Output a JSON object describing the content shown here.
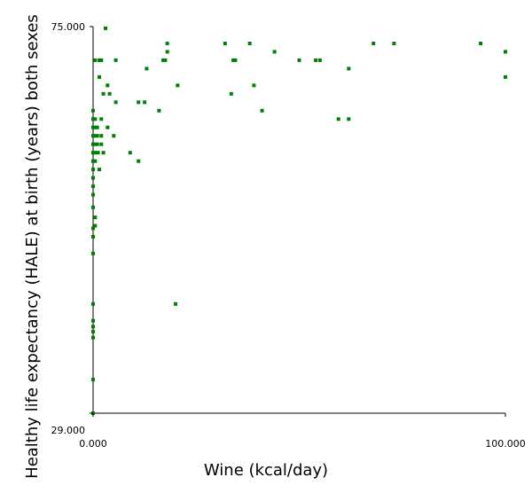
{
  "chart_data": {
    "type": "scatter",
    "xlabel": "Wine (kcal/day)",
    "ylabel": "Healthy life expectancy (HALE) at birth (years) both sexes",
    "xlim": [
      0,
      100
    ],
    "ylim": [
      29,
      75
    ],
    "x_ticks": [
      "0.000",
      "100.000"
    ],
    "y_ticks": [
      "75.000",
      "29.000"
    ],
    "grid": false,
    "legend": "none",
    "series": [
      {
        "color": "#008000",
        "points": [
          [
            0.0,
            29.0
          ],
          [
            0.0,
            33.0
          ],
          [
            0.0,
            38.0
          ],
          [
            0.0,
            38.7
          ],
          [
            0.0,
            39.3
          ],
          [
            0.0,
            40.0
          ],
          [
            0.0,
            42.0
          ],
          [
            0.0,
            48.0
          ],
          [
            0.0,
            50.0
          ],
          [
            0.0,
            51.0
          ],
          [
            0.0,
            53.5
          ],
          [
            0.0,
            55.0
          ],
          [
            0.0,
            56.0
          ],
          [
            0.0,
            57.0
          ],
          [
            0.0,
            58.0
          ],
          [
            0.0,
            59.0
          ],
          [
            0.0,
            60.0
          ],
          [
            0.0,
            61.0
          ],
          [
            0.0,
            62.0
          ],
          [
            0.0,
            63.0
          ],
          [
            0.0,
            64.0
          ],
          [
            0.0,
            65.0
          ],
          [
            0.5,
            52.3
          ],
          [
            0.5,
            51.3
          ],
          [
            0.5,
            59.0
          ],
          [
            0.5,
            60.0
          ],
          [
            0.5,
            61.0
          ],
          [
            0.5,
            62.0
          ],
          [
            0.5,
            63.0
          ],
          [
            0.5,
            64.0
          ],
          [
            0.5,
            71.0
          ],
          [
            1.0,
            61.0
          ],
          [
            1.0,
            62.0
          ],
          [
            1.0,
            63.0
          ],
          [
            1.2,
            60.0
          ],
          [
            1.5,
            58.0
          ],
          [
            1.5,
            69.0
          ],
          [
            1.5,
            71.0
          ],
          [
            2.0,
            71.0
          ],
          [
            2.0,
            64.0
          ],
          [
            2.0,
            62.0
          ],
          [
            2.0,
            61.0
          ],
          [
            2.5,
            60.0
          ],
          [
            2.5,
            67.0
          ],
          [
            3.0,
            74.8
          ],
          [
            3.5,
            68.0
          ],
          [
            3.5,
            63.0
          ],
          [
            4.0,
            67.0
          ],
          [
            5.0,
            62.0
          ],
          [
            5.5,
            66.0
          ],
          [
            5.5,
            71.0
          ],
          [
            9.0,
            60.0
          ],
          [
            11.0,
            59.0
          ],
          [
            11.0,
            66.0
          ],
          [
            12.5,
            66.0
          ],
          [
            13.0,
            70.0
          ],
          [
            16.0,
            65.0
          ],
          [
            17.0,
            71.0
          ],
          [
            17.5,
            71.0
          ],
          [
            18.0,
            72.0
          ],
          [
            18.0,
            73.0
          ],
          [
            20.0,
            42.0
          ],
          [
            20.5,
            68.0
          ],
          [
            32.0,
            73.0
          ],
          [
            33.5,
            67.0
          ],
          [
            34.0,
            71.0
          ],
          [
            34.5,
            71.0
          ],
          [
            38.0,
            73.0
          ],
          [
            39.0,
            68.0
          ],
          [
            41.0,
            65.0
          ],
          [
            44.0,
            72.0
          ],
          [
            50.0,
            71.0
          ],
          [
            54.0,
            71.0
          ],
          [
            55.0,
            71.0
          ],
          [
            59.5,
            64.0
          ],
          [
            62.0,
            64.0
          ],
          [
            62.0,
            70.0
          ],
          [
            68.0,
            73.0
          ],
          [
            73.0,
            73.0
          ],
          [
            94.0,
            73.0
          ],
          [
            100.0,
            72.0
          ],
          [
            100.0,
            69.0
          ]
        ]
      }
    ]
  }
}
